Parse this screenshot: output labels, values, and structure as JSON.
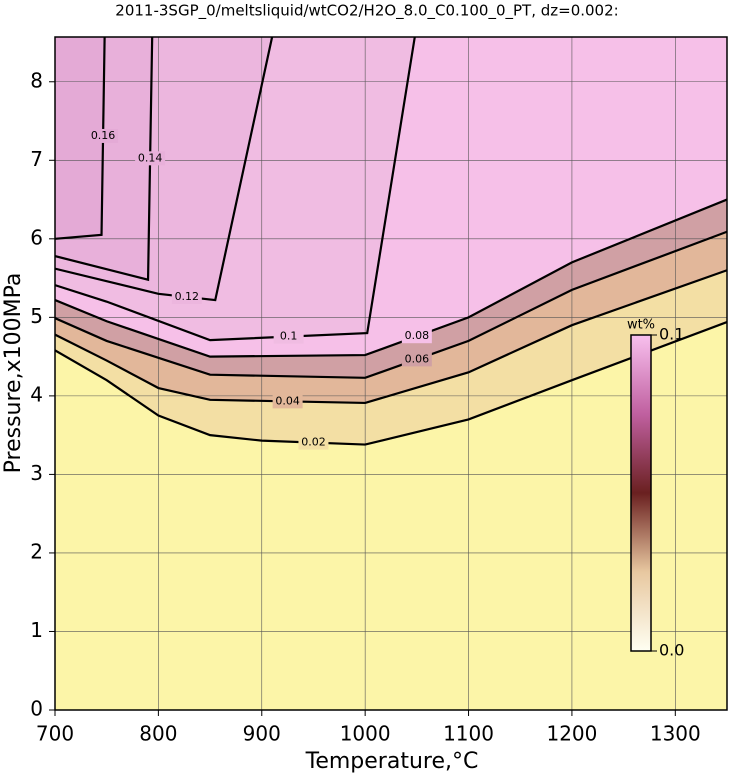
{
  "chart_data": {
    "type": "contour",
    "title": "2011-3SGP_0/meltsliquid/wtCO2/H2O_8.0_C0.100_0_PT, dz=0.002:",
    "x_label": "Temperature,°C",
    "y_label": "Pressure,x100MPa",
    "xlim": [
      700,
      1350
    ],
    "ylim": [
      0,
      8.57
    ],
    "xticks": [
      700,
      800,
      900,
      1000,
      1100,
      1200,
      1300
    ],
    "yticks": [
      0,
      1,
      2,
      3,
      4,
      5,
      6,
      7,
      8
    ],
    "grid": true,
    "background": "#fcf5a8",
    "contours": [
      {
        "level": 0.02,
        "fill": "#f3dfa4",
        "x": [
          700,
          750,
          800,
          850,
          900,
          1000,
          1100,
          1200,
          1350
        ],
        "y": [
          4.58,
          4.2,
          3.75,
          3.5,
          3.43,
          3.38,
          3.7,
          4.2,
          4.94
        ]
      },
      {
        "level": 0.04,
        "fill": "#e2b79a",
        "x": [
          700,
          750,
          800,
          850,
          1000,
          1100,
          1200,
          1350
        ],
        "y": [
          4.78,
          4.45,
          4.1,
          3.95,
          3.91,
          4.3,
          4.9,
          5.6
        ]
      },
      {
        "level": 0.06,
        "fill": "#d0a0a4",
        "x": [
          700,
          750,
          850,
          1000,
          1100,
          1200,
          1350
        ],
        "y": [
          4.99,
          4.7,
          4.27,
          4.23,
          4.7,
          5.35,
          6.09
        ]
      },
      {
        "level": 0.08,
        "fill": "#f6c0e8",
        "x": [
          700,
          750,
          850,
          1000,
          1100,
          1200,
          1350
        ],
        "y": [
          5.22,
          4.95,
          4.5,
          4.52,
          5.0,
          5.7,
          6.5
        ]
      },
      {
        "level": 0.1,
        "fill": "#f0bce2",
        "x": [
          700,
          750,
          850,
          1002,
          1048
        ],
        "y": [
          5.41,
          5.2,
          4.71,
          4.8,
          8.57
        ]
      },
      {
        "level": 0.12,
        "fill": "#ecb6de",
        "x": [
          700,
          800,
          855,
          910
        ],
        "y": [
          5.62,
          5.3,
          5.22,
          8.57
        ]
      },
      {
        "level": 0.14,
        "fill": "#e8b0da",
        "x": [
          700,
          790,
          794
        ],
        "y": [
          5.78,
          5.48,
          8.57
        ]
      },
      {
        "level": 0.16,
        "fill": "#e4aad6",
        "x": [
          700,
          745,
          748
        ],
        "y": [
          6.0,
          6.05,
          8.57
        ]
      }
    ],
    "colorbar": {
      "label": "wt%",
      "colors": [
        "#fffff2",
        "#e8c8a0",
        "#6a2020",
        "#c060a0",
        "#f8c0ee"
      ],
      "ticks": [
        {
          "value": 0,
          "label": "0.0"
        },
        0.1
      ],
      "lim": [
        0,
        0.1
      ]
    }
  }
}
